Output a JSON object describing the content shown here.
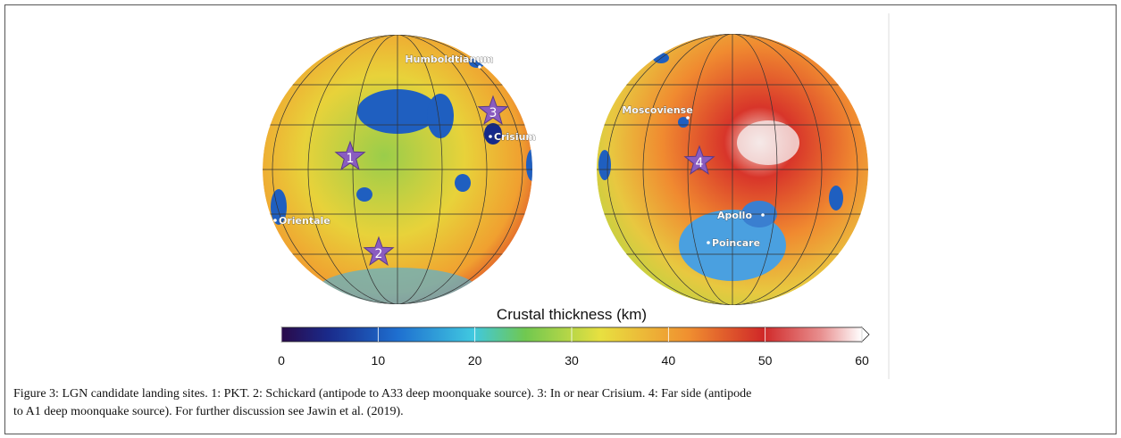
{
  "figure": {
    "left_map": {
      "labels": [
        "Humboldtianum",
        "Crisium",
        "Orientale"
      ],
      "stars": [
        "1",
        "2",
        "3"
      ]
    },
    "right_map": {
      "labels": [
        "Moscoviense",
        "Apollo",
        "Poincare"
      ],
      "stars": [
        "4"
      ]
    },
    "colorbar": {
      "title": "Crustal thickness (km)",
      "lim": [
        0,
        60
      ],
      "ticks": [
        0,
        10,
        20,
        30,
        40,
        50,
        60
      ]
    }
  },
  "caption": [
    "Figure 3: LGN candidate landing sites. 1: PKT. 2: Schickard (antipode to A33 deep moonquake source). 3: In or near Crisium. 4: Far side (antipode",
    "to A1 deep moonquake source). For further discussion see Jawin et al. (2019)."
  ]
}
